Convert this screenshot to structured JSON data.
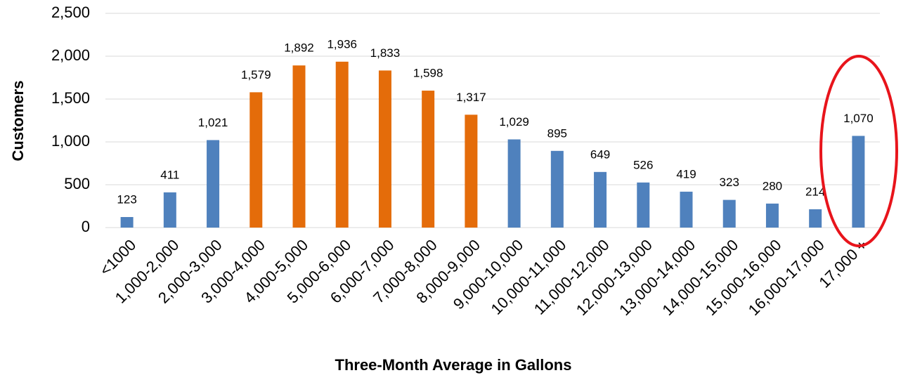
{
  "chart_data": {
    "type": "bar",
    "x_label": "Three-Month Average in Gallons",
    "y_label": "Customers",
    "categories": [
      "<1000",
      "1,000-2,000",
      "2,000-3,000",
      "3,000-4,000",
      "4,000-5,000",
      "5,000-6,000",
      "6,000-7,000",
      "7,000-8,000",
      "8,000-9,000",
      "9,000-10,000",
      "10,000-11,000",
      "11,000-12,000",
      "12,000-13,000",
      "13,000-14,000",
      "14,000-15,000",
      "15,000-16,000",
      "16,000-17,000",
      "17,000 +"
    ],
    "values": [
      123,
      411,
      1021,
      1579,
      1892,
      1936,
      1833,
      1598,
      1317,
      1029,
      895,
      649,
      526,
      419,
      323,
      280,
      214,
      1070
    ],
    "value_labels": [
      "123",
      "411",
      "1,021",
      "1,579",
      "1,892",
      "1,936",
      "1,833",
      "1,598",
      "1,317",
      "1,029",
      "895",
      "649",
      "526",
      "419",
      "323",
      "280",
      "214",
      "1,070"
    ],
    "colors": [
      "#4f81bd",
      "#4f81bd",
      "#4f81bd",
      "#e46c0a",
      "#e46c0a",
      "#e46c0a",
      "#e46c0a",
      "#e46c0a",
      "#e46c0a",
      "#4f81bd",
      "#4f81bd",
      "#4f81bd",
      "#4f81bd",
      "#4f81bd",
      "#4f81bd",
      "#4f81bd",
      "#4f81bd",
      "#4f81bd"
    ],
    "ylim": [
      0,
      2500
    ],
    "yticks": [
      0,
      500,
      {
        "value": 1000,
        "label": "1,000"
      },
      {
        "value": 1500,
        "label": "1,500"
      },
      {
        "value": 2000,
        "label": "2,000"
      },
      {
        "value": 2500,
        "label": "2,500"
      }
    ],
    "grid": true
  }
}
